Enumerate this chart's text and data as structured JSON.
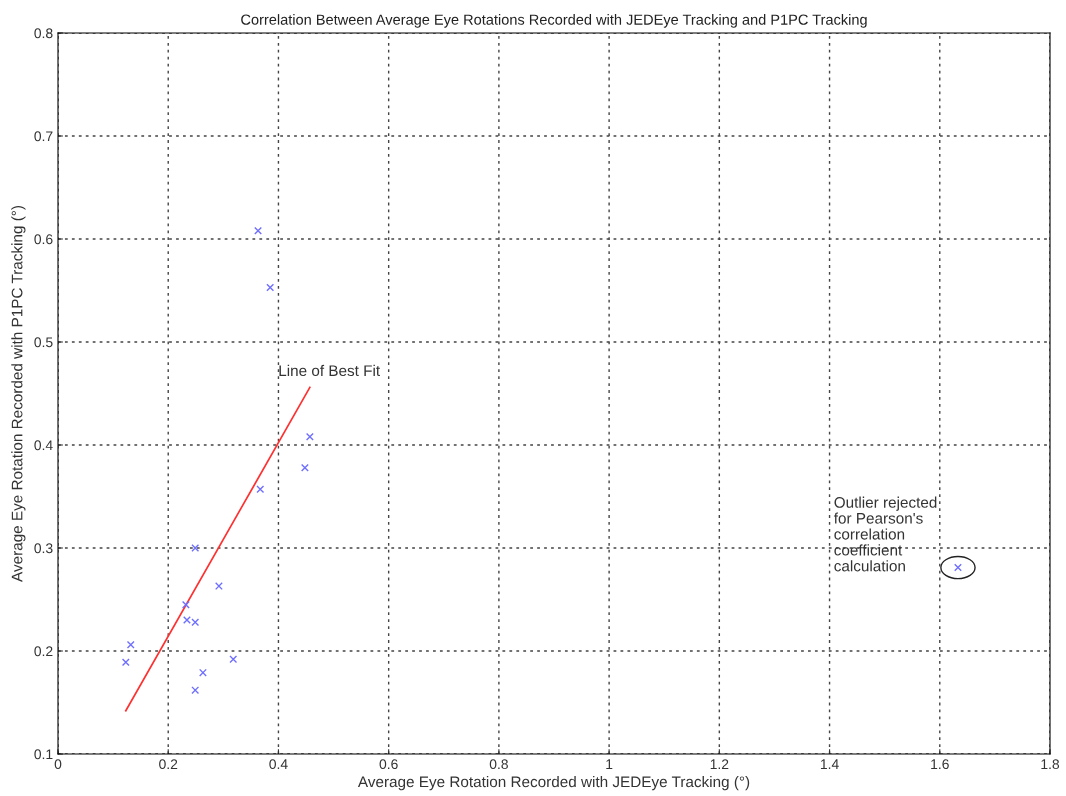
{
  "chart_data": {
    "type": "scatter",
    "title": "Correlation Between Average Eye Rotations Recorded with JEDEye Tracking and P1PC Tracking",
    "xlabel": "Average Eye Rotation Recorded with JEDEye Tracking (°)",
    "ylabel": "Average Eye Rotation Recorded with P1PC Tracking (°)",
    "series": [
      {
        "color": "#6f6fff",
        "marker": "cross",
        "x": [
          0.123,
          0.132,
          0.232,
          0.234,
          0.249,
          0.249,
          0.249,
          0.263,
          0.292,
          0.318,
          0.367,
          0.448,
          0.457,
          0.363,
          0.385,
          1.633
        ],
        "values": [
          0.189,
          0.206,
          0.245,
          0.23,
          0.228,
          0.3,
          0.162,
          0.179,
          0.263,
          0.192,
          0.357,
          0.378,
          0.408,
          0.608,
          0.553,
          0.281
        ]
      },
      {
        "type": "line",
        "color": "#ff3030",
        "line_style": "solid",
        "x": [
          0.123,
          0.457
        ],
        "values": [
          0.142,
          0.456
        ]
      }
    ],
    "annotations": [
      "Line of Best Fit",
      "Outlier rejected\nfor Pearson's\ncorrelation\ncoefficient\ncalculation"
    ],
    "xlim": [
      0,
      1.8
    ],
    "ylim": [
      0.1,
      0.8
    ],
    "xticks": [
      0,
      0.2,
      0.4,
      0.6,
      0.8,
      1,
      1.2,
      1.4,
      1.6,
      1.8
    ],
    "yticks": [
      0.1,
      0.2,
      0.3,
      0.4,
      0.5,
      0.6,
      0.7,
      0.8
    ],
    "grid": true
  }
}
